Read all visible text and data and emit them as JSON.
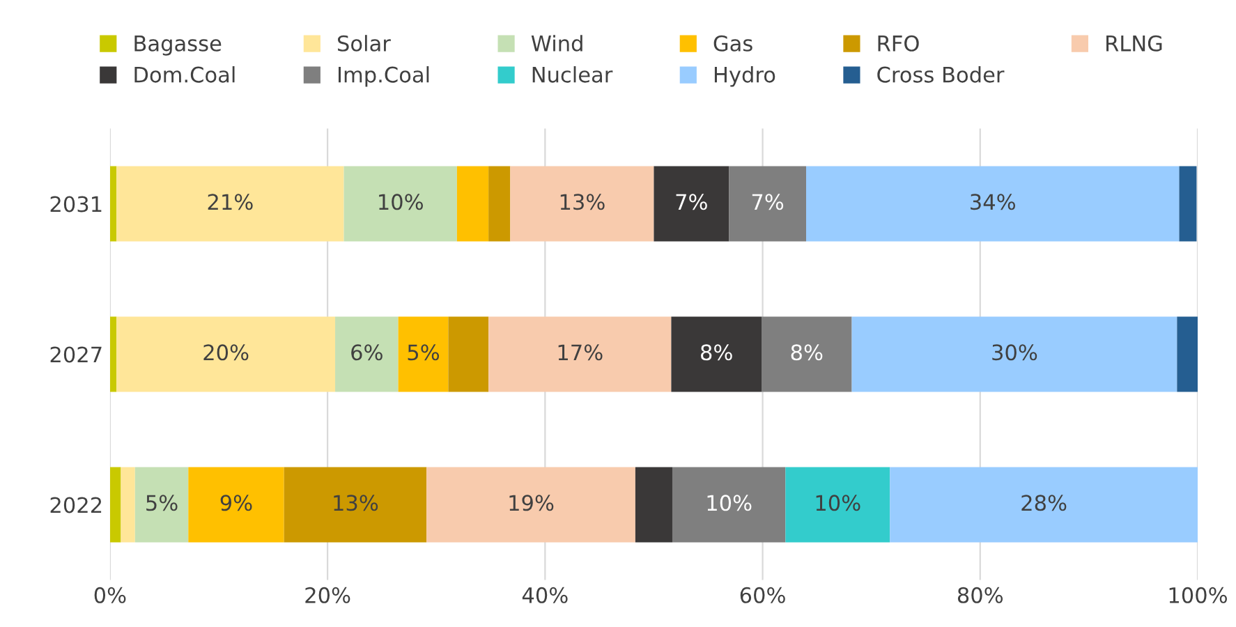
{
  "chart_data": {
    "type": "bar",
    "orientation": "horizontal",
    "stacked": true,
    "categories": [
      "2031",
      "2027",
      "2022"
    ],
    "series": [
      {
        "name": "Bagasse",
        "color": "#c9c900",
        "values": [
          0.6,
          0.6,
          1.0
        ],
        "value_labels": [
          null,
          null,
          null
        ]
      },
      {
        "name": "Solar",
        "color": "#ffe699",
        "values": [
          20.9,
          20.1,
          1.3
        ],
        "value_labels": [
          "21%",
          "20%",
          null
        ]
      },
      {
        "name": "Wind",
        "color": "#c5e0b4",
        "values": [
          10.4,
          5.8,
          4.9
        ],
        "value_labels": [
          "10%",
          "6%",
          "5%"
        ]
      },
      {
        "name": "Gas",
        "color": "#ffc000",
        "values": [
          2.9,
          4.6,
          8.8
        ],
        "value_labels": [
          null,
          "5%",
          "9%"
        ]
      },
      {
        "name": "RFO",
        "color": "#cc9900",
        "values": [
          2.0,
          3.7,
          13.1
        ],
        "value_labels": [
          null,
          null,
          "13%"
        ]
      },
      {
        "name": "RLNG",
        "color": "#f8cbad",
        "values": [
          13.2,
          16.8,
          19.2
        ],
        "value_labels": [
          "13%",
          "17%",
          "19%"
        ]
      },
      {
        "name": "Dom.Coal",
        "color": "#3a3838",
        "values": [
          6.9,
          8.3,
          3.4
        ],
        "value_labels": [
          "7%",
          "8%",
          null
        ]
      },
      {
        "name": "Imp.Coal",
        "color": "#7f7f7f",
        "values": [
          7.1,
          8.3,
          10.4
        ],
        "value_labels": [
          "7%",
          "8%",
          "10%"
        ]
      },
      {
        "name": "Nuclear",
        "color": "#33cccc",
        "values": [
          null,
          null,
          9.6
        ],
        "value_labels": [
          null,
          null,
          "10%"
        ]
      },
      {
        "name": "Hydro",
        "color": "#99ccff",
        "values": [
          34.3,
          29.9,
          28.3
        ],
        "value_labels": [
          "34%",
          "30%",
          "28%"
        ]
      },
      {
        "name": "Cross Boder",
        "color": "#255e91",
        "values": [
          1.6,
          1.9,
          null
        ],
        "value_labels": [
          null,
          null,
          null
        ]
      }
    ],
    "xlim": [
      0,
      100
    ],
    "xticks": [
      {
        "value": 0,
        "label": "0%"
      },
      {
        "value": 20,
        "label": "20%"
      },
      {
        "value": 40,
        "label": "40%"
      },
      {
        "value": 60,
        "label": "60%"
      },
      {
        "value": 80,
        "label": "80%"
      },
      {
        "value": 100,
        "label": "100%"
      }
    ],
    "grid": "x",
    "legend": "top"
  }
}
